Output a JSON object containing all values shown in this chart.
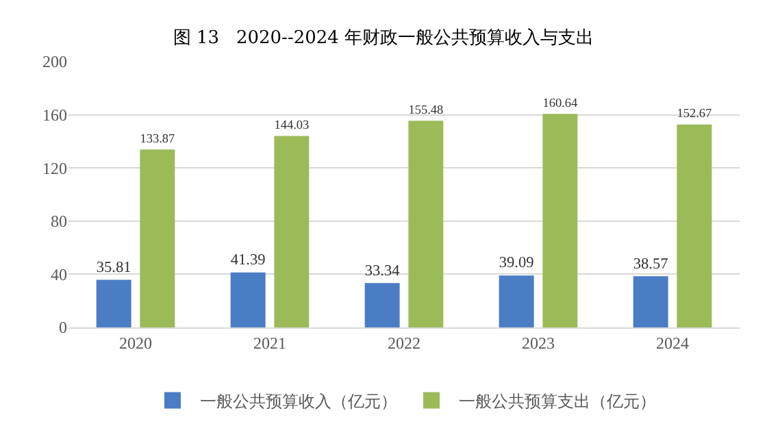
{
  "chart_data": {
    "type": "bar",
    "title": "图 13   2020--2024 年财政一般公共预算收入与支出",
    "categories": [
      "2020",
      "2021",
      "2022",
      "2023",
      "2024"
    ],
    "series": [
      {
        "name": "一般公共预算收入（亿元）",
        "color": "#4a7dc4",
        "values": [
          35.81,
          41.39,
          33.34,
          39.09,
          38.57
        ]
      },
      {
        "name": "一般公共预算支出（亿元）",
        "color": "#9bbb59",
        "values": [
          133.87,
          144.03,
          155.48,
          160.64,
          152.67
        ]
      }
    ],
    "ylim": [
      0,
      200
    ],
    "yticks": [
      0,
      40,
      80,
      120,
      160,
      200
    ],
    "grid": "y",
    "legend": "bottom",
    "data_labels": true
  }
}
